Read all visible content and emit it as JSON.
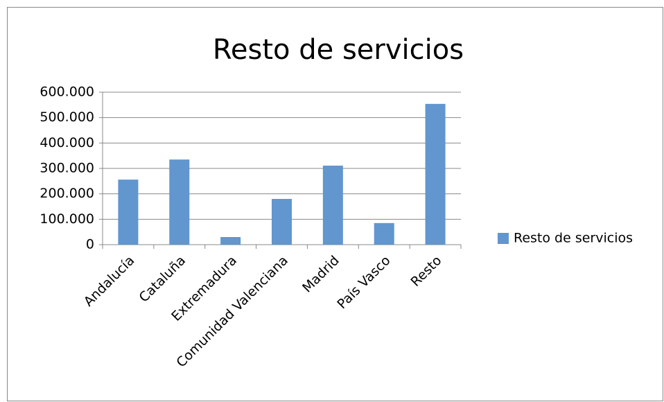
{
  "chart_data": {
    "type": "bar",
    "title": "Resto de servicios",
    "categories": [
      "Andalucía",
      "Cataluña",
      "Extremadura",
      "Comunidad Valenciana",
      "Madrid",
      "País Vasco",
      "Resto"
    ],
    "series": [
      {
        "name": "Resto de servicios",
        "color": "#6196cf",
        "values": [
          256000,
          335000,
          30000,
          180000,
          311000,
          85000,
          554000
        ]
      }
    ],
    "ylim": [
      0,
      600000
    ],
    "yticks": [
      0,
      {
        "value": 100000,
        "label": "100.000"
      },
      {
        "value": 200000,
        "label": "200.000"
      },
      {
        "value": 300000,
        "label": "300.000"
      },
      {
        "value": 400000,
        "label": "400.000"
      },
      {
        "value": 500000,
        "label": "500.000"
      },
      {
        "value": 600000,
        "label": "600.000"
      }
    ],
    "grid": true,
    "legend": "right"
  }
}
